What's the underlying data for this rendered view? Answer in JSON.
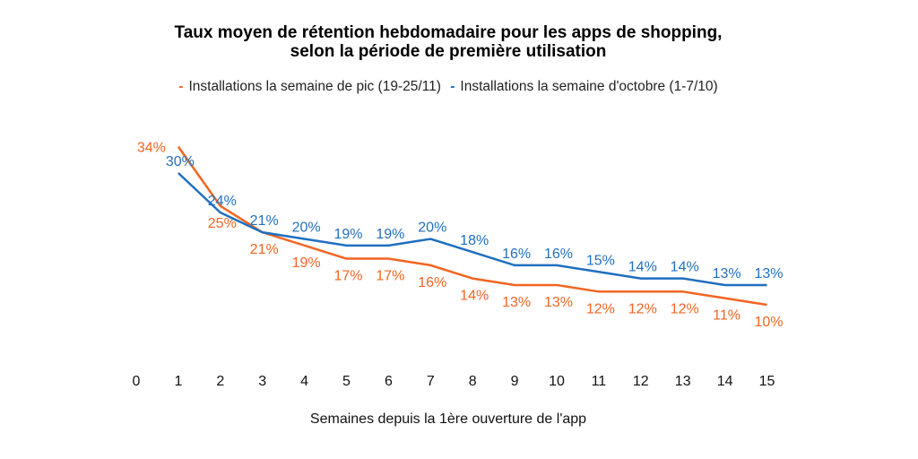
{
  "chart_data": {
    "type": "line",
    "title": "Taux moyen de rétention hebdomadaire pour les apps de shopping,",
    "subtitle": "selon la période de première utilisation",
    "xlabel": "Semaines depuis la 1ère ouverture de l'app",
    "ylabel": "",
    "x_ticks": [
      0,
      1,
      2,
      3,
      4,
      5,
      6,
      7,
      8,
      9,
      10,
      11,
      12,
      13,
      14,
      15
    ],
    "x": [
      1,
      2,
      3,
      4,
      5,
      6,
      7,
      8,
      9,
      10,
      11,
      12,
      13,
      14,
      15
    ],
    "grid": false,
    "legend_position": "top",
    "series": [
      {
        "name": "Installations la semaine de pic (19-25/11)",
        "color": "#f26522",
        "values": [
          34,
          25,
          21,
          19,
          17,
          17,
          16,
          14,
          13,
          13,
          12,
          12,
          12,
          11,
          10
        ]
      },
      {
        "name": "Installations la semaine d'octobre (1-7/10)",
        "color": "#1f6fbf",
        "values": [
          30,
          24,
          21,
          20,
          19,
          19,
          20,
          18,
          16,
          16,
          15,
          14,
          14,
          13,
          13
        ]
      }
    ],
    "value_suffix": "%"
  }
}
